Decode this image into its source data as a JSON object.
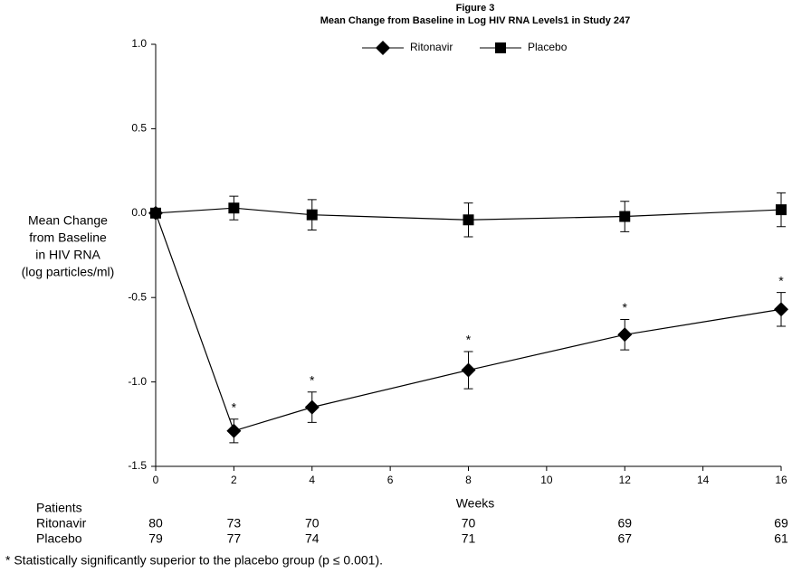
{
  "chart_data": {
    "type": "line",
    "title": "Figure 3",
    "subtitle": "Mean Change from Baseline in Log HIV RNA Levels1 in Study 247",
    "y_label": [
      "Mean Change",
      "from Baseline",
      "in HIV RNA",
      "(log particles/ml)"
    ],
    "x_label": "Weeks",
    "x": [
      0,
      2,
      4,
      8,
      12,
      16
    ],
    "xlim": [
      0,
      16
    ],
    "xticks": [
      0,
      2,
      4,
      6,
      8,
      10,
      12,
      14,
      16
    ],
    "ylim": [
      -1.5,
      1.0
    ],
    "yticks": [
      {
        "value": -1.5,
        "label": "-1.5"
      },
      {
        "value": -1.0,
        "label": "-1.0"
      },
      {
        "value": -0.5,
        "label": "-0.5"
      },
      {
        "value": 0,
        "label": "0.0"
      },
      {
        "value": 0.5,
        "label": "0.5"
      },
      {
        "value": 1.0,
        "label": "1.0"
      }
    ],
    "legend_position": "top",
    "significance_mark": "*",
    "series": [
      {
        "name": "Ritonavir",
        "color": "#000000",
        "marker": "diamond",
        "values": [
          0,
          -1.29,
          -1.15,
          -0.93,
          -0.72,
          -0.57
        ],
        "errors": [
          0,
          0.07,
          0.09,
          0.11,
          0.09,
          0.1
        ],
        "significant": [
          false,
          true,
          true,
          true,
          true,
          true
        ]
      },
      {
        "name": "Placebo",
        "color": "#000000",
        "marker": "square",
        "values": [
          0,
          0.03,
          -0.01,
          -0.04,
          -0.02,
          0.02
        ],
        "errors": [
          0,
          0.07,
          0.09,
          0.1,
          0.09,
          0.1
        ],
        "significant": [
          false,
          false,
          false,
          false,
          false,
          false
        ]
      }
    ],
    "patients": {
      "label": "Patients",
      "rows": [
        {
          "name": "Ritonavir",
          "values": [
            80,
            73,
            70,
            70,
            69,
            69
          ]
        },
        {
          "name": "Placebo",
          "values": [
            79,
            77,
            74,
            71,
            67,
            61
          ]
        }
      ]
    },
    "footnote": "* Statistically significantly superior to the placebo group (p ≤ 0.001)."
  }
}
